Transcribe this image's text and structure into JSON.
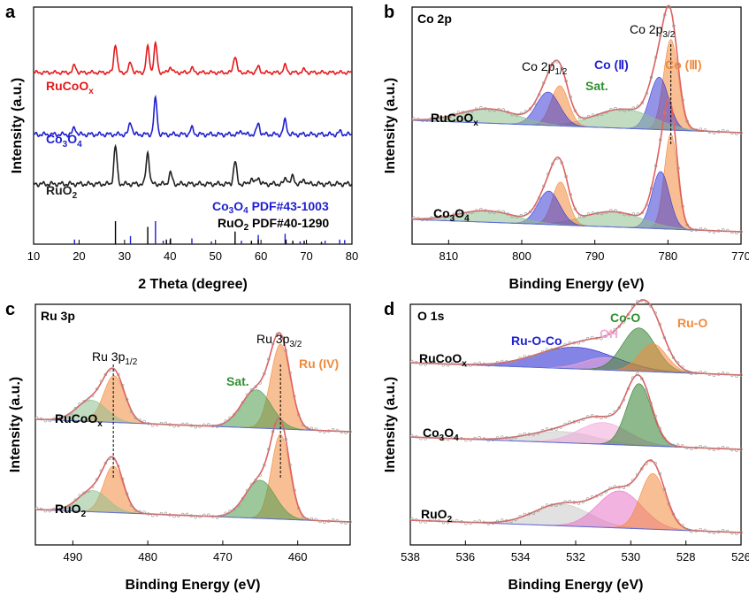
{
  "chart_data": [
    {
      "panel": "a",
      "type": "line",
      "xlabel": "2 Theta (degree)",
      "ylabel": "Intensity (a.u.)",
      "xlim": [
        10,
        80
      ],
      "xticks": [
        "10",
        "20",
        "30",
        "40",
        "50",
        "60",
        "70",
        "80"
      ],
      "series": [
        {
          "name": "RuCoO",
          "name_sub": "x",
          "color": "#e41a1c",
          "peaks": [
            {
              "x": 19.0,
              "h": 0.25
            },
            {
              "x": 28.0,
              "h": 1.0
            },
            {
              "x": 31.3,
              "h": 0.35
            },
            {
              "x": 35.1,
              "h": 0.9
            },
            {
              "x": 36.8,
              "h": 1.0
            },
            {
              "x": 40.1,
              "h": 0.2
            },
            {
              "x": 44.8,
              "h": 0.15
            },
            {
              "x": 54.3,
              "h": 0.6
            },
            {
              "x": 59.4,
              "h": 0.2
            },
            {
              "x": 65.3,
              "h": 0.25
            },
            {
              "x": 69.5,
              "h": 0.1
            }
          ]
        },
        {
          "name": "Co",
          "name_sub": "3",
          "name_mid": "O",
          "name_sub2": "4",
          "color": "#1f1fd1",
          "peaks": [
            {
              "x": 19.0,
              "h": 0.2
            },
            {
              "x": 31.3,
              "h": 0.35
            },
            {
              "x": 36.8,
              "h": 1.0
            },
            {
              "x": 44.8,
              "h": 0.18
            },
            {
              "x": 55.7,
              "h": 0.1
            },
            {
              "x": 59.4,
              "h": 0.3
            },
            {
              "x": 65.3,
              "h": 0.4
            },
            {
              "x": 77.4,
              "h": 0.08
            }
          ]
        },
        {
          "name": "RuO",
          "name_sub": "2",
          "color": "#222222",
          "peaks": [
            {
              "x": 28.0,
              "h": 1.0
            },
            {
              "x": 35.1,
              "h": 0.85
            },
            {
              "x": 40.1,
              "h": 0.3
            },
            {
              "x": 54.3,
              "h": 0.6
            },
            {
              "x": 57.9,
              "h": 0.15
            },
            {
              "x": 59.4,
              "h": 0.18
            },
            {
              "x": 65.5,
              "h": 0.18
            },
            {
              "x": 67.0,
              "h": 0.2
            },
            {
              "x": 69.5,
              "h": 0.12
            }
          ]
        }
      ],
      "references": [
        {
          "label": "Co",
          "sub": "3",
          "mid": "O",
          "sub2": "4",
          "tail": " PDF#43-1003",
          "color": "#1f1fd1",
          "lines": [
            {
              "x": 19.0,
              "h": 0.2
            },
            {
              "x": 31.3,
              "h": 0.35
            },
            {
              "x": 36.8,
              "h": 1.0
            },
            {
              "x": 38.5,
              "h": 0.15
            },
            {
              "x": 44.8,
              "h": 0.25
            },
            {
              "x": 49.1,
              "h": 0.12
            },
            {
              "x": 55.7,
              "h": 0.15
            },
            {
              "x": 59.4,
              "h": 0.4
            },
            {
              "x": 65.3,
              "h": 0.45
            },
            {
              "x": 68.6,
              "h": 0.12
            },
            {
              "x": 74.1,
              "h": 0.15
            },
            {
              "x": 77.3,
              "h": 0.2
            },
            {
              "x": 78.4,
              "h": 0.18
            }
          ]
        },
        {
          "label": "RuO",
          "sub": "2",
          "tail": " PDF#40-1290",
          "color": "#000000",
          "lines": [
            {
              "x": 28.0,
              "h": 1.0
            },
            {
              "x": 35.1,
              "h": 0.75
            },
            {
              "x": 39.2,
              "h": 0.2
            },
            {
              "x": 40.1,
              "h": 0.25
            },
            {
              "x": 54.3,
              "h": 0.55
            },
            {
              "x": 57.9,
              "h": 0.15
            },
            {
              "x": 59.4,
              "h": 0.2
            },
            {
              "x": 65.5,
              "h": 0.2
            },
            {
              "x": 67.0,
              "h": 0.15
            },
            {
              "x": 69.5,
              "h": 0.15
            },
            {
              "x": 73.3,
              "h": 0.1
            }
          ]
        }
      ]
    },
    {
      "panel": "b",
      "title": "Co 2p",
      "type": "line",
      "xlabel": "Binding Energy (eV)",
      "ylabel": "Intensity (a.u.)",
      "xlim": [
        815,
        770
      ],
      "xticks": [
        "810",
        "800",
        "790",
        "780",
        "770"
      ],
      "annotations": {
        "co2p12": "Co 2p",
        "co2p12_sub": "1/2",
        "co2p32": "Co 2p",
        "co2p32_sub": "3/2",
        "sat": "Sat.",
        "co2": "Co (Ⅱ)",
        "co3": "Co (Ⅲ)"
      },
      "samples": [
        {
          "name": "RuCoO",
          "sub": "x",
          "components": [
            {
              "center": 779.6,
              "width": 1.0,
              "h": 0.95,
              "color": "#f28a3c"
            },
            {
              "center": 781.2,
              "width": 1.3,
              "h": 0.55,
              "color": "#3a3ad6"
            },
            {
              "center": 786.0,
              "width": 4.0,
              "h": 0.2,
              "color": "#8fbf8f"
            },
            {
              "center": 794.8,
              "width": 1.2,
              "h": 0.42,
              "color": "#f28a3c"
            },
            {
              "center": 796.4,
              "width": 1.6,
              "h": 0.35,
              "color": "#3a3ad6"
            },
            {
              "center": 804.5,
              "width": 4.0,
              "h": 0.15,
              "color": "#8fbf8f"
            }
          ]
        },
        {
          "name": "Co",
          "sub": "3",
          "mid": "O",
          "sub2": "4",
          "components": [
            {
              "center": 779.6,
              "width": 0.9,
              "h": 1.0,
              "color": "#f28a3c"
            },
            {
              "center": 781.0,
              "width": 1.2,
              "h": 0.6,
              "color": "#3a3ad6"
            },
            {
              "center": 787.5,
              "width": 4.0,
              "h": 0.16,
              "color": "#8fbf8f"
            },
            {
              "center": 794.7,
              "width": 1.1,
              "h": 0.45,
              "color": "#f28a3c"
            },
            {
              "center": 796.3,
              "width": 1.5,
              "h": 0.35,
              "color": "#3a3ad6"
            },
            {
              "center": 804.8,
              "width": 4.0,
              "h": 0.12,
              "color": "#8fbf8f"
            }
          ]
        }
      ]
    },
    {
      "panel": "c",
      "title": "Ru 3p",
      "type": "line",
      "xlabel": "Binding Energy (eV)",
      "ylabel": "Intensity (a.u.)",
      "xlim": [
        495,
        453
      ],
      "xticks": [
        "490",
        "480",
        "470",
        "460"
      ],
      "annotations": {
        "ru3p12": "Ru 3p",
        "ru3p12_sub": "1/2",
        "ru3p32": "Ru 3p",
        "ru3p32_sub": "3/2",
        "sat": "Sat.",
        "ru4": "Ru (IV)"
      },
      "samples": [
        {
          "name": "RuCoO",
          "sub": "x",
          "components": [
            {
              "center": 462.3,
              "width": 1.3,
              "h": 1.0,
              "color": "#f28a3c"
            },
            {
              "center": 465.5,
              "width": 2.0,
              "h": 0.45,
              "color": "#4a9a4a"
            },
            {
              "center": 484.5,
              "width": 1.4,
              "h": 0.55,
              "color": "#f28a3c"
            },
            {
              "center": 487.5,
              "width": 2.0,
              "h": 0.25,
              "color": "#8fbf8f"
            }
          ]
        },
        {
          "name": "RuO",
          "sub": "2",
          "components": [
            {
              "center": 462.3,
              "width": 1.2,
              "h": 1.0,
              "color": "#f28a3c"
            },
            {
              "center": 465.0,
              "width": 2.0,
              "h": 0.45,
              "color": "#4a9a4a"
            },
            {
              "center": 484.6,
              "width": 1.3,
              "h": 0.55,
              "color": "#f28a3c"
            },
            {
              "center": 487.3,
              "width": 2.0,
              "h": 0.25,
              "color": "#8fbf8f"
            }
          ]
        }
      ]
    },
    {
      "panel": "d",
      "title": "O 1s",
      "type": "line",
      "xlabel": "Binding Energy (eV)",
      "ylabel": "Intensity (a.u.)",
      "xlim": [
        538,
        526
      ],
      "xticks": [
        "538",
        "536",
        "534",
        "532",
        "530",
        "528",
        "526"
      ],
      "annotations": {
        "ruoco": "Ru-O-Co",
        "oh": "OH",
        "coo": "Co-O",
        "ruo": "Ru-O"
      },
      "samples": [
        {
          "name": "RuCoO",
          "sub": "x",
          "components": [
            {
              "center": 532.0,
              "width": 1.4,
              "h": 0.35,
              "color": "#1f1fd1"
            },
            {
              "center": 530.9,
              "width": 0.8,
              "h": 0.2,
              "color": "#f2a8d8"
            },
            {
              "center": 529.7,
              "width": 0.6,
              "h": 0.7,
              "color": "#2f7f2f"
            },
            {
              "center": 529.2,
              "width": 0.5,
              "h": 0.45,
              "color": "#f28a3c"
            }
          ]
        },
        {
          "name": "Co",
          "sub": "3",
          "mid": "O",
          "sub2": "4",
          "components": [
            {
              "center": 532.5,
              "width": 1.2,
              "h": 0.18,
              "color": "#c8c8c8"
            },
            {
              "center": 531.0,
              "width": 0.9,
              "h": 0.35,
              "color": "#f2a8d8"
            },
            {
              "center": 529.7,
              "width": 0.45,
              "h": 1.0,
              "color": "#2f7f2f"
            }
          ]
        },
        {
          "name": "RuO",
          "sub": "2",
          "components": [
            {
              "center": 532.5,
              "width": 1.0,
              "h": 0.35,
              "color": "#c8c8c8"
            },
            {
              "center": 530.4,
              "width": 0.8,
              "h": 0.6,
              "color": "#e874c8"
            },
            {
              "center": 529.2,
              "width": 0.45,
              "h": 0.9,
              "color": "#f28a3c"
            }
          ]
        }
      ]
    }
  ]
}
